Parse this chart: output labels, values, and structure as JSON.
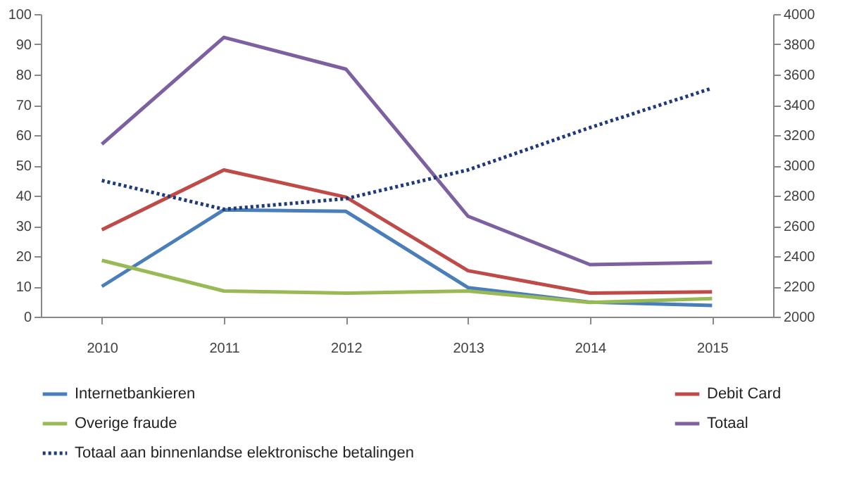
{
  "chart_data": {
    "type": "line",
    "categories": [
      "2010",
      "2011",
      "2012",
      "2013",
      "2014",
      "2015"
    ],
    "series": [
      {
        "name": "Internetbankieren",
        "color": "#4a7ebb",
        "values": [
          10,
          35.3,
          34.8,
          9.6,
          4.8,
          3.7
        ]
      },
      {
        "name": "Debit Card",
        "color": "#be4b48",
        "values": [
          28.7,
          48.5,
          39.5,
          15.2,
          7.8,
          8.2
        ]
      },
      {
        "name": "Overige fraude",
        "color": "#98b954",
        "values": [
          18.6,
          8.5,
          7.8,
          8.5,
          4.7,
          6.0
        ]
      },
      {
        "name": "Totaal",
        "color": "#7d60a0",
        "values": [
          57,
          92.3,
          81.8,
          33.2,
          17.2,
          17.9
        ]
      },
      {
        "name": "Totaal aan binnenlandse elektronische betalingen",
        "color": "#1f3a7a",
        "axis": "y2",
        "line_style": "dotted",
        "values": [
          2900,
          2710,
          2780,
          2970,
          3250,
          3510
        ]
      }
    ],
    "ylim": [
      0,
      100
    ],
    "yticks": [
      0,
      10,
      20,
      30,
      40,
      50,
      60,
      70,
      80,
      90,
      100
    ],
    "y2lim": [
      2000,
      4000
    ],
    "y2ticks": [
      2000,
      2200,
      2400,
      2600,
      2800,
      3000,
      3200,
      3400,
      3600,
      3800,
      4000
    ],
    "grid": false,
    "legend": "bottom",
    "marker": "none",
    "line_style": "solid"
  }
}
